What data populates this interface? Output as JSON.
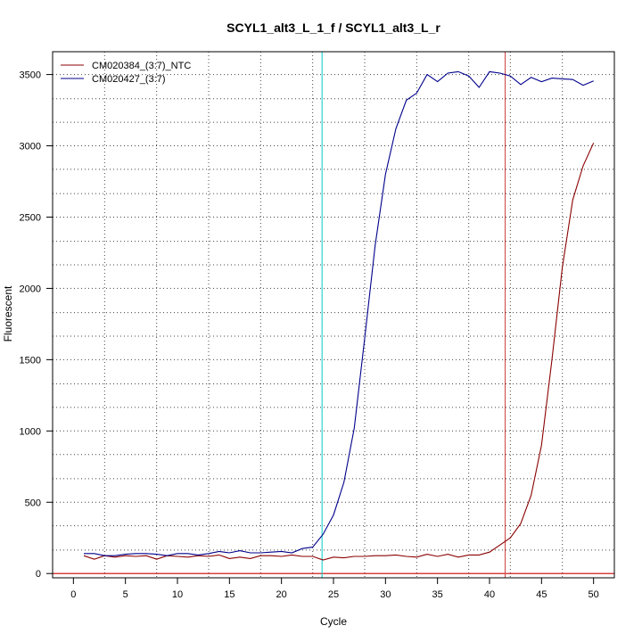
{
  "chart_data": {
    "type": "line",
    "title": "SCYL1_alt3_L_1_f / SCYL1_alt3_L_r",
    "xlabel": "Cycle",
    "ylabel": "Fluorescent",
    "xlim": [
      -2,
      52
    ],
    "ylim": [
      -30,
      3660
    ],
    "xticks": [
      0,
      5,
      10,
      15,
      20,
      25,
      30,
      35,
      40,
      45,
      50
    ],
    "yticks": [
      0,
      500,
      1000,
      1500,
      2000,
      2500,
      3000,
      3500
    ],
    "x_grid": [
      3,
      8,
      13,
      18,
      23,
      28,
      33,
      38,
      42,
      47
    ],
    "y_grid": [
      165,
      335,
      500,
      665,
      835,
      1000,
      1165,
      1330,
      1500,
      1665,
      1830,
      2000,
      2165,
      2330,
      2500,
      2665,
      2835,
      3000,
      3165,
      3330,
      3500
    ],
    "grid": true,
    "legend_position": "top-left",
    "threshold": 0,
    "threshold_color": "#cc0000",
    "vlines": [
      {
        "x": 23.9,
        "color": "#00cccc"
      },
      {
        "x": 41.5,
        "color": "#cc4444"
      }
    ],
    "series": [
      {
        "name": "CM020384_(3:7)_NTC",
        "color": "#8b0000",
        "x": [
          1,
          2,
          3,
          4,
          5,
          6,
          7,
          8,
          9,
          10,
          11,
          12,
          13,
          14,
          15,
          16,
          17,
          18,
          19,
          20,
          21,
          22,
          23,
          24,
          25,
          26,
          27,
          28,
          29,
          30,
          31,
          32,
          33,
          34,
          35,
          36,
          37,
          38,
          39,
          40,
          41,
          42,
          43,
          44,
          45,
          46,
          47,
          48,
          49,
          50
        ],
        "values": [
          125,
          100,
          125,
          115,
          125,
          120,
          125,
          100,
          125,
          120,
          115,
          125,
          120,
          130,
          105,
          115,
          105,
          125,
          125,
          120,
          130,
          120,
          120,
          95,
          115,
          110,
          120,
          120,
          125,
          125,
          130,
          120,
          115,
          135,
          120,
          135,
          115,
          130,
          130,
          150,
          200,
          250,
          350,
          550,
          900,
          1500,
          2150,
          2620,
          2860,
          3020
        ]
      },
      {
        "name": "CM020427_(3:7)",
        "color": "#00008b",
        "x": [
          1,
          2,
          3,
          4,
          5,
          6,
          7,
          8,
          9,
          10,
          11,
          12,
          13,
          14,
          15,
          16,
          17,
          18,
          19,
          20,
          21,
          22,
          23,
          24,
          25,
          26,
          27,
          28,
          29,
          30,
          31,
          32,
          33,
          34,
          35,
          36,
          37,
          38,
          39,
          40,
          41,
          42,
          43,
          44,
          45,
          46,
          47,
          48,
          49,
          50
        ],
        "values": [
          140,
          140,
          125,
          125,
          135,
          140,
          140,
          135,
          125,
          140,
          140,
          130,
          140,
          155,
          145,
          160,
          145,
          145,
          150,
          155,
          145,
          175,
          185,
          275,
          410,
          640,
          1020,
          1650,
          2300,
          2800,
          3120,
          3320,
          3370,
          3500,
          3450,
          3510,
          3520,
          3490,
          3410,
          3520,
          3510,
          3490,
          3430,
          3480,
          3450,
          3475,
          3470,
          3465,
          3425,
          3455
        ]
      }
    ]
  }
}
